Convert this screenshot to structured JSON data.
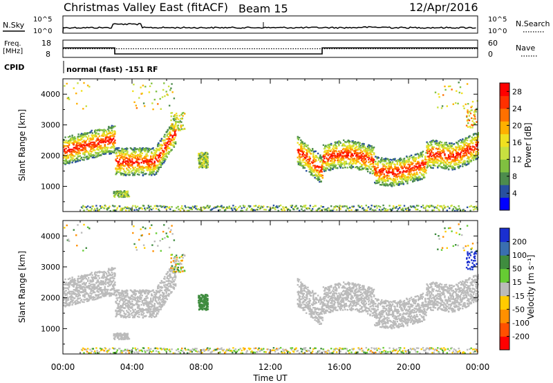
{
  "header": {
    "title": "Christmas Valley East (fitACF)",
    "beam": "Beam 15",
    "date": "12/Apr/2016"
  },
  "status_panel": {
    "nsky_label": "N.Sky",
    "nsearch_label": "N.Search",
    "noise_ticks": [
      "10^5",
      "10^0"
    ],
    "freq_label": "Freq.",
    "freq_unit": "[MHz]",
    "freq_ticks": [
      "18",
      "8"
    ],
    "nave_label": "Nave",
    "nave_ticks": [
      "60",
      "0"
    ],
    "cpid_label": "CPID",
    "cpid_value": "normal (fast) -151 RF"
  },
  "chart_data": [
    {
      "type": "line",
      "name": "status_noise_freq",
      "x_hours": [
        0,
        3,
        3,
        15,
        15,
        24
      ],
      "freq_mhz": [
        13.5,
        13.5,
        10,
        10,
        13.5,
        13.5
      ],
      "freq_ylim": [
        8,
        18
      ],
      "nave_ylim": [
        0,
        60
      ],
      "noise_log_ylim": [
        0,
        5
      ]
    },
    {
      "type": "heatmap",
      "name": "power",
      "xlabel": "Time UT",
      "ylabel": "Slant Range [km]",
      "xlim_hours": [
        0,
        24
      ],
      "ylim_km": [
        180,
        4500
      ],
      "x_ticks": [
        "00:00",
        "04:00",
        "08:00",
        "12:00",
        "16:00",
        "20:00",
        "00:00"
      ],
      "y_ticks": [
        "1000",
        "2000",
        "3000",
        "4000"
      ],
      "colorbar": {
        "label": "Power [dB]",
        "ticks": [
          "4",
          "8",
          "12",
          "16",
          "20",
          "24",
          "28"
        ],
        "range": [
          0,
          30
        ],
        "colors": [
          "#0000ff",
          "#2850a0",
          "#4d8c4d",
          "#80c040",
          "#c8e040",
          "#f0e020",
          "#ffb000",
          "#ff7000",
          "#ff3000",
          "#ff0000"
        ]
      }
    },
    {
      "type": "heatmap",
      "name": "velocity",
      "xlabel": "Time UT",
      "ylabel": "Slant Range [km]",
      "xlim_hours": [
        0,
        24
      ],
      "ylim_km": [
        180,
        4500
      ],
      "x_ticks": [
        "00:00",
        "04:00",
        "08:00",
        "12:00",
        "16:00",
        "20:00",
        "00:00"
      ],
      "y_ticks": [
        "1000",
        "2000",
        "3000",
        "4000"
      ],
      "colorbar": {
        "label": "Velocity [m s⁻¹]",
        "ticks": [
          "200",
          "100",
          "50",
          "15",
          "-15",
          "-50",
          "-100",
          "-200"
        ],
        "colors": [
          "#1a2fd0",
          "#3a6fb0",
          "#3f8c3f",
          "#66cc33",
          "#bbbbbb",
          "#ffcc00",
          "#ff9000",
          "#ff5000",
          "#ff0000"
        ]
      }
    }
  ],
  "axes": {
    "xlabel": "Time UT"
  }
}
